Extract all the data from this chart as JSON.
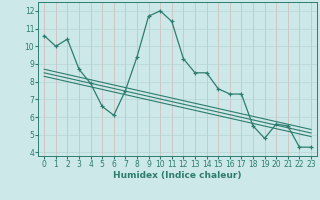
{
  "xlabel": "Humidex (Indice chaleur)",
  "bg_color": "#cde8e8",
  "line_color": "#2d7d6e",
  "grid_color_h": "#b8d4d4",
  "grid_color_v": "#d4b8b8",
  "xlim": [
    -0.5,
    23.5
  ],
  "ylim": [
    3.8,
    12.5
  ],
  "yticks": [
    4,
    5,
    6,
    7,
    8,
    9,
    10,
    11,
    12
  ],
  "xticks": [
    0,
    1,
    2,
    3,
    4,
    5,
    6,
    7,
    8,
    9,
    10,
    11,
    12,
    13,
    14,
    15,
    16,
    17,
    18,
    19,
    20,
    21,
    22,
    23
  ],
  "series1_x": [
    0,
    1,
    2,
    3,
    4,
    5,
    6,
    7,
    8,
    9,
    10,
    11,
    12,
    13,
    14,
    15,
    16,
    17,
    18,
    19,
    20,
    21,
    22,
    23
  ],
  "series1_y": [
    10.6,
    10.0,
    10.4,
    8.7,
    7.9,
    6.6,
    6.1,
    7.5,
    9.4,
    11.7,
    12.0,
    11.4,
    9.3,
    8.5,
    8.5,
    7.6,
    7.3,
    7.3,
    5.5,
    4.8,
    5.6,
    5.5,
    4.3,
    4.3
  ],
  "series2_x": [
    0,
    23
  ],
  "series2_y": [
    8.3,
    4.9
  ],
  "series3_x": [
    0,
    23
  ],
  "series3_y": [
    8.5,
    5.1
  ],
  "series4_x": [
    0,
    23
  ],
  "series4_y": [
    8.7,
    5.3
  ]
}
